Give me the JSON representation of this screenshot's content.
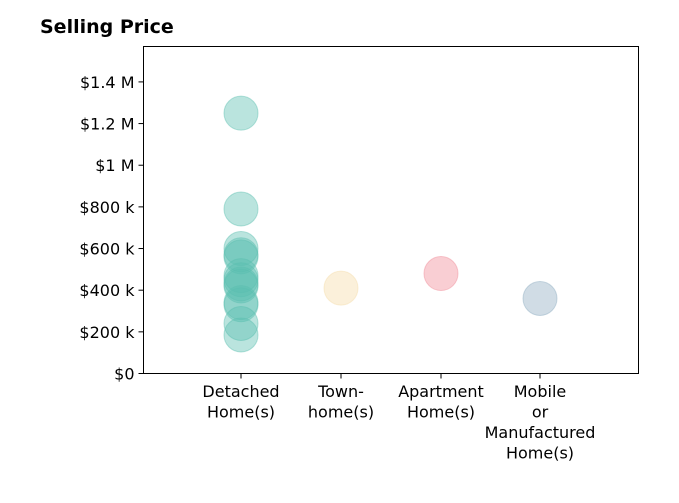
{
  "chart_data": {
    "type": "scatter",
    "title": "Selling Price",
    "xlabel": "",
    "ylabel": "",
    "ylim": [
      0,
      1570000
    ],
    "yticks": [
      {
        "value": 0,
        "label": "$0"
      },
      {
        "value": 200000,
        "label": "$200 k"
      },
      {
        "value": 400000,
        "label": "$400 k"
      },
      {
        "value": 600000,
        "label": "$600 k"
      },
      {
        "value": 800000,
        "label": "$800 k"
      },
      {
        "value": 1000000,
        "label": "$1 M"
      },
      {
        "value": 1200000,
        "label": "$1.2 M"
      },
      {
        "value": 1400000,
        "label": "$1.4 M"
      }
    ],
    "categories": [
      {
        "lines": [
          "Detached",
          "Home(s)"
        ]
      },
      {
        "lines": [
          "Town-",
          "home(s)"
        ]
      },
      {
        "lines": [
          "Apartment",
          "Home(s)"
        ]
      },
      {
        "lines": [
          "Mobile",
          "or",
          "Manufactured",
          "Home(s)"
        ]
      }
    ],
    "series": [
      {
        "category_index": 0,
        "color": "#5bbfb0",
        "values": [
          1250000,
          790000,
          600000,
          570000,
          560000,
          470000,
          450000,
          430000,
          420000,
          340000,
          330000,
          240000,
          185000
        ]
      },
      {
        "category_index": 1,
        "color": "#f5dca8",
        "values": [
          410000
        ]
      },
      {
        "category_index": 2,
        "color": "#f08a96",
        "values": [
          480000
        ]
      },
      {
        "category_index": 3,
        "color": "#8eacc2",
        "values": [
          360000
        ]
      }
    ],
    "grid": false
  }
}
